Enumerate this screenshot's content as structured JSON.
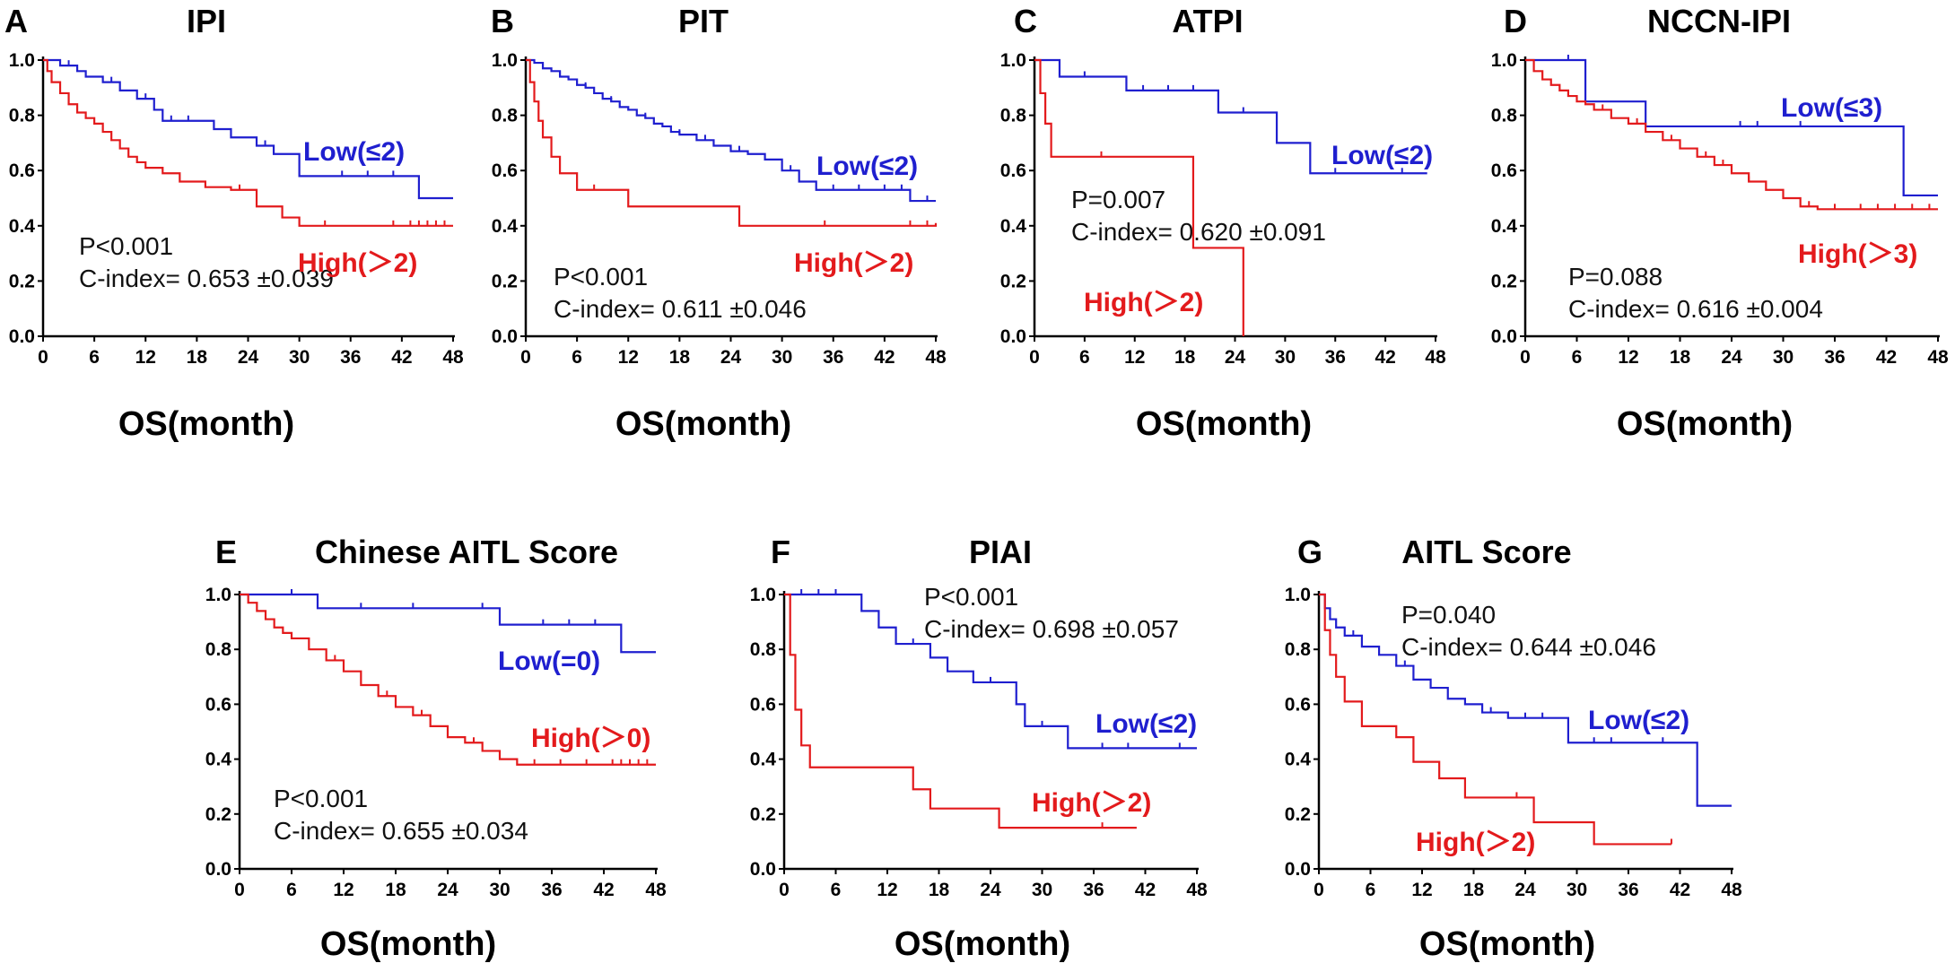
{
  "colors": {
    "low": "#1f1fcf",
    "high": "#e31a1c",
    "axis": "#000000"
  },
  "chart_data": [
    {
      "type": "line",
      "letter": "A",
      "title": "IPI",
      "xlabel": "OS(month)",
      "ylabel": "",
      "xlim": [
        0,
        48
      ],
      "ylim": [
        0,
        1.0
      ],
      "xticks": [
        "0",
        "6",
        "12",
        "18",
        "24",
        "30",
        "36",
        "42",
        "48"
      ],
      "yticks": [
        "0.0",
        "0.2",
        "0.4",
        "0.6",
        "0.8",
        "1.0"
      ],
      "p_text": "P<0.001",
      "c_text": "C-index= 0.653 ±0.039",
      "series": [
        {
          "name": "Low(≤2)",
          "group": "low",
          "x": [
            0,
            2,
            4,
            5,
            7,
            9,
            11,
            13,
            14,
            16,
            20,
            22,
            25,
            27,
            30,
            33,
            39,
            44,
            48
          ],
          "y": [
            1.0,
            0.98,
            0.96,
            0.94,
            0.92,
            0.89,
            0.86,
            0.82,
            0.78,
            0.78,
            0.75,
            0.72,
            0.69,
            0.66,
            0.58,
            0.58,
            0.58,
            0.5,
            0.5
          ],
          "censor_x": [
            3,
            8,
            12,
            15,
            17,
            26,
            35,
            38,
            41
          ]
        },
        {
          "name": "High(＞2)",
          "group": "high",
          "x": [
            0,
            0.5,
            1,
            2,
            3,
            4,
            5,
            6,
            7,
            8,
            9,
            10,
            11,
            12,
            14,
            16,
            19,
            22,
            25,
            28,
            30,
            34,
            40,
            48
          ],
          "y": [
            1.0,
            0.96,
            0.92,
            0.88,
            0.84,
            0.81,
            0.79,
            0.77,
            0.74,
            0.71,
            0.68,
            0.65,
            0.63,
            0.61,
            0.59,
            0.56,
            0.54,
            0.53,
            0.47,
            0.43,
            0.4,
            0.4,
            0.4,
            0.4
          ],
          "censor_x": [
            23,
            33,
            41,
            43,
            44,
            45,
            46,
            47
          ]
        }
      ]
    },
    {
      "type": "line",
      "letter": "B",
      "title": "PIT",
      "xlabel": "OS(month)",
      "ylabel": "",
      "xlim": [
        0,
        48
      ],
      "ylim": [
        0,
        1.0
      ],
      "xticks": [
        "0",
        "6",
        "12",
        "18",
        "24",
        "30",
        "36",
        "42",
        "48"
      ],
      "yticks": [
        "0.0",
        "0.2",
        "0.4",
        "0.6",
        "0.8",
        "1.0"
      ],
      "p_text": "P<0.001",
      "c_text": "C-index= 0.611 ±0.046",
      "series": [
        {
          "name": "Low(≤2)",
          "group": "low",
          "x": [
            0,
            1,
            2,
            3,
            4,
            5,
            6,
            7,
            8,
            9,
            10,
            11,
            12,
            13,
            14,
            15,
            16,
            17,
            18,
            20,
            22,
            24,
            26,
            28,
            30,
            32,
            34,
            38,
            41,
            45,
            48
          ],
          "y": [
            1.0,
            0.99,
            0.97,
            0.96,
            0.94,
            0.93,
            0.91,
            0.9,
            0.88,
            0.86,
            0.85,
            0.83,
            0.82,
            0.8,
            0.79,
            0.77,
            0.76,
            0.74,
            0.73,
            0.71,
            0.69,
            0.67,
            0.66,
            0.64,
            0.6,
            0.56,
            0.53,
            0.53,
            0.53,
            0.49,
            0.49
          ],
          "censor_x": [
            2,
            4,
            7,
            10,
            14,
            18,
            21,
            25,
            31,
            36,
            39,
            42,
            44,
            47
          ]
        },
        {
          "name": "High(＞2)",
          "group": "high",
          "x": [
            0,
            0.5,
            1,
            1.5,
            2,
            3,
            4,
            6,
            8,
            12,
            14,
            25,
            30,
            40,
            48
          ],
          "y": [
            1.0,
            0.92,
            0.85,
            0.78,
            0.72,
            0.65,
            0.59,
            0.53,
            0.53,
            0.47,
            0.47,
            0.4,
            0.4,
            0.4,
            0.41
          ],
          "censor_x": [
            8,
            35,
            45,
            47
          ]
        }
      ]
    },
    {
      "type": "line",
      "letter": "C",
      "title": "ATPI",
      "xlabel": "OS(month)",
      "ylabel": "",
      "xlim": [
        0,
        48
      ],
      "ylim": [
        0,
        1.0
      ],
      "xticks": [
        "0",
        "6",
        "12",
        "18",
        "24",
        "30",
        "36",
        "42",
        "48"
      ],
      "yticks": [
        "0.0",
        "0.2",
        "0.4",
        "0.6",
        "0.8",
        "1.0"
      ],
      "p_text": "P=0.007",
      "c_text": "C-index= 0.620 ±0.091",
      "series": [
        {
          "name": "Low(≤2)",
          "group": "low",
          "x": [
            0,
            3,
            11,
            22,
            29,
            33,
            47
          ],
          "y": [
            1.0,
            0.94,
            0.89,
            0.81,
            0.7,
            0.59,
            0.59
          ],
          "censor_x": [
            6,
            13,
            16,
            19,
            25,
            36,
            44
          ]
        },
        {
          "name": "High(＞2)",
          "group": "high",
          "x": [
            0,
            0.7,
            1.3,
            2,
            19,
            22,
            25
          ],
          "y": [
            1.0,
            0.88,
            0.77,
            0.65,
            0.32,
            0.32,
            0.0
          ],
          "censor_x": [
            8
          ]
        }
      ]
    },
    {
      "type": "line",
      "letter": "D",
      "title": "NCCN-IPI",
      "xlabel": "OS(month)",
      "ylabel": "",
      "xlim": [
        0,
        48
      ],
      "ylim": [
        0,
        1.0
      ],
      "xticks": [
        "0",
        "6",
        "12",
        "18",
        "24",
        "30",
        "36",
        "42",
        "48"
      ],
      "yticks": [
        "0.0",
        "0.2",
        "0.4",
        "0.6",
        "0.8",
        "1.0"
      ],
      "p_text": "P=0.088",
      "c_text": "C-index= 0.616 ±0.004",
      "series": [
        {
          "name": "Low(≤3)",
          "group": "low",
          "x": [
            0,
            7,
            11,
            14,
            30,
            44,
            48
          ],
          "y": [
            1.0,
            0.85,
            0.85,
            0.76,
            0.76,
            0.51,
            0.51
          ],
          "censor_x": [
            5,
            25,
            27,
            32,
            44
          ]
        },
        {
          "name": "High(＞3)",
          "group": "high",
          "x": [
            0,
            1,
            2,
            3,
            4,
            5,
            6,
            7,
            8,
            10,
            12,
            14,
            16,
            18,
            20,
            22,
            24,
            26,
            28,
            30,
            32,
            34,
            38,
            48
          ],
          "y": [
            1.0,
            0.96,
            0.93,
            0.91,
            0.89,
            0.87,
            0.85,
            0.84,
            0.82,
            0.79,
            0.77,
            0.74,
            0.71,
            0.68,
            0.65,
            0.62,
            0.59,
            0.56,
            0.53,
            0.5,
            0.47,
            0.46,
            0.46,
            0.46
          ],
          "censor_x": [
            9,
            13,
            17,
            21,
            23,
            26,
            33,
            36,
            39,
            41,
            43,
            45,
            47
          ]
        }
      ]
    },
    {
      "type": "line",
      "letter": "E",
      "title": "Chinese AITL Score",
      "xlabel": "OS(month)",
      "ylabel": "",
      "xlim": [
        0,
        48
      ],
      "ylim": [
        0,
        1.0
      ],
      "xticks": [
        "0",
        "6",
        "12",
        "18",
        "24",
        "30",
        "36",
        "42",
        "48"
      ],
      "yticks": [
        "0.0",
        "0.2",
        "0.4",
        "0.6",
        "0.8",
        "1.0"
      ],
      "p_text": "P<0.001",
      "c_text": "C-index= 0.655 ±0.034",
      "series": [
        {
          "name": "Low(=0)",
          "group": "low",
          "x": [
            0,
            9,
            30,
            44,
            48
          ],
          "y": [
            1.0,
            0.95,
            0.89,
            0.79,
            0.79
          ],
          "censor_x": [
            6,
            14,
            20,
            28,
            35,
            38,
            41
          ]
        },
        {
          "name": "High(＞0)",
          "group": "high",
          "x": [
            0,
            1,
            2,
            3,
            4,
            5,
            6,
            8,
            10,
            12,
            14,
            16,
            18,
            20,
            22,
            24,
            26,
            28,
            30,
            32,
            34,
            38,
            42,
            48
          ],
          "y": [
            1.0,
            0.97,
            0.94,
            0.91,
            0.88,
            0.86,
            0.84,
            0.8,
            0.76,
            0.72,
            0.67,
            0.63,
            0.59,
            0.56,
            0.52,
            0.48,
            0.46,
            0.43,
            0.4,
            0.38,
            0.38,
            0.38,
            0.38,
            0.38
          ],
          "censor_x": [
            11,
            17,
            21,
            27,
            34,
            37,
            40,
            43,
            44,
            45,
            46,
            47
          ]
        }
      ]
    },
    {
      "type": "line",
      "letter": "F",
      "title": "PIAI",
      "xlabel": "OS(month)",
      "ylabel": "",
      "xlim": [
        0,
        48
      ],
      "ylim": [
        0,
        1.0
      ],
      "xticks": [
        "0",
        "6",
        "12",
        "18",
        "24",
        "30",
        "36",
        "42",
        "48"
      ],
      "yticks": [
        "0.0",
        "0.2",
        "0.4",
        "0.6",
        "0.8",
        "1.0"
      ],
      "p_text": "P<0.001",
      "c_text": "C-index= 0.698 ±0.057",
      "series": [
        {
          "name": "Low(≤2)",
          "group": "low",
          "x": [
            0,
            9,
            11,
            13,
            17,
            19,
            22,
            27,
            28,
            33,
            36,
            48
          ],
          "y": [
            1.0,
            0.94,
            0.88,
            0.82,
            0.77,
            0.72,
            0.68,
            0.6,
            0.52,
            0.44,
            0.44,
            0.44
          ],
          "censor_x": [
            2,
            4,
            6,
            15,
            24,
            30,
            37,
            40,
            46
          ]
        },
        {
          "name": "High(＞2)",
          "group": "high",
          "x": [
            0,
            0.7,
            1.3,
            2,
            3,
            5,
            15,
            17,
            25,
            36,
            41
          ],
          "y": [
            1.0,
            0.78,
            0.58,
            0.45,
            0.37,
            0.37,
            0.29,
            0.22,
            0.15,
            0.15,
            0.15
          ],
          "censor_x": [
            37
          ]
        }
      ]
    },
    {
      "type": "line",
      "letter": "G",
      "title": "AITL Score",
      "xlabel": "OS(month)",
      "ylabel": "",
      "xlim": [
        0,
        48
      ],
      "ylim": [
        0,
        1.0
      ],
      "xticks": [
        "0",
        "6",
        "12",
        "18",
        "24",
        "30",
        "36",
        "42",
        "48"
      ],
      "yticks": [
        "0.0",
        "0.2",
        "0.4",
        "0.6",
        "0.8",
        "1.0"
      ],
      "p_text": "P=0.040",
      "c_text": "C-index= 0.644 ±0.046",
      "series": [
        {
          "name": "Low(≤2)",
          "group": "low",
          "x": [
            0,
            0.7,
            1.3,
            2,
            3,
            5,
            7,
            9,
            11,
            13,
            15,
            17,
            19,
            22,
            29,
            44,
            48
          ],
          "y": [
            1.0,
            0.95,
            0.91,
            0.88,
            0.85,
            0.81,
            0.78,
            0.74,
            0.69,
            0.66,
            0.62,
            0.6,
            0.57,
            0.55,
            0.46,
            0.23,
            0.23
          ],
          "censor_x": [
            4,
            10,
            20,
            24,
            26,
            32,
            34,
            40
          ]
        },
        {
          "name": "High(＞2)",
          "group": "high",
          "x": [
            0,
            0.7,
            1.3,
            2,
            3,
            5,
            9,
            11,
            14,
            17,
            25,
            32,
            41
          ],
          "y": [
            1.0,
            0.87,
            0.78,
            0.7,
            0.61,
            0.52,
            0.48,
            0.39,
            0.33,
            0.26,
            0.17,
            0.09,
            0.09
          ],
          "censor_x": [
            23,
            41
          ]
        }
      ]
    }
  ]
}
